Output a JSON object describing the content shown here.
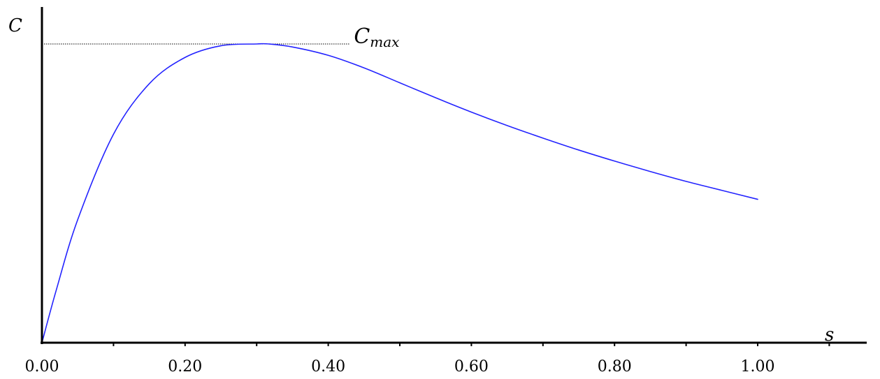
{
  "chart_data": {
    "type": "line",
    "title": "",
    "xlabel": "s",
    "ylabel": "C",
    "xlim": [
      0,
      1.15
    ],
    "ylim": [
      0,
      1.1
    ],
    "grid": false,
    "x_ticks": [
      0,
      0.1,
      0.2,
      0.3,
      0.4,
      0.5,
      0.6,
      0.7,
      0.8,
      0.9,
      1.0,
      1.1
    ],
    "x_tick_labels": [
      "0.00",
      "0.20",
      "0.40",
      "0.60",
      "0.80",
      "1.00"
    ],
    "x_tick_label_values": [
      0,
      0.2,
      0.4,
      0.6,
      0.8,
      1.0
    ],
    "series": [
      {
        "color": "#2323ff",
        "x": [
          0,
          0.02,
          0.05,
          0.1,
          0.15,
          0.2,
          0.25,
          0.3,
          0.317,
          0.35,
          0.4,
          0.45,
          0.5,
          0.55,
          0.6,
          0.65,
          0.7,
          0.75,
          0.8,
          0.85,
          0.9,
          0.95,
          1.0
        ],
        "y": [
          0,
          0.176,
          0.412,
          0.698,
          0.867,
          0.955,
          0.994,
          1.0,
          1.0,
          0.99,
          0.962,
          0.92,
          0.87,
          0.82,
          0.772,
          0.727,
          0.685,
          0.645,
          0.608,
          0.573,
          0.54,
          0.51,
          0.48
        ]
      }
    ],
    "annotations": [
      {
        "type": "hline",
        "label": "C",
        "label_subscript": "max",
        "y": 1.0,
        "x_start": 0,
        "x_end": 0.43,
        "style": "dotted"
      }
    ]
  }
}
